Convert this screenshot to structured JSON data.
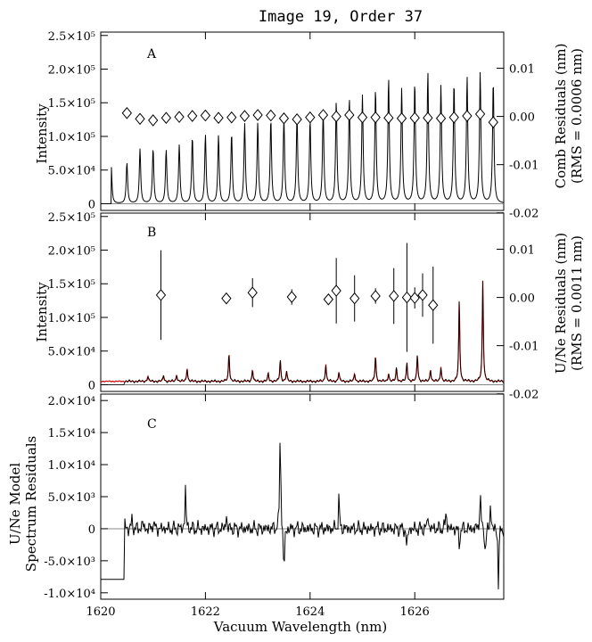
{
  "chart_data": {
    "title": "Image 19, Order 37",
    "xlabel": "Vacuum Wavelength (nm)",
    "xlim": [
      1620,
      1627.7
    ],
    "xticks": [
      1620,
      1622,
      1624,
      1626
    ],
    "xtick_labels": [
      "1620",
      "1622",
      "1624",
      "1626"
    ],
    "panels": [
      {
        "id": "A",
        "type": "line",
        "label": "A",
        "ylabel": "Intensity",
        "ylim": [
          -10000,
          255000
        ],
        "yticks": [
          0,
          50000,
          100000,
          150000,
          200000,
          250000
        ],
        "ytick_labels": [
          "0",
          "5.0×10⁴",
          "1.0×10⁵",
          "1.5×10⁵",
          "2.0×10⁵",
          "2.5×10⁵"
        ],
        "y2label": "Comb Residuals (nm)",
        "y2label2": "(RMS = 0.0006 nm)",
        "y2lim": [
          -0.0195,
          0.0175
        ],
        "y2ticks": [
          -0.02,
          -0.01,
          0.0,
          0.01
        ],
        "y2tick_labels": [
          "-0.02",
          "-0.01",
          "0.00",
          "0.01"
        ],
        "series": [
          {
            "kind": "comb_spectrum",
            "color": "#000000",
            "x": [
              1620.2,
              1620.5,
              1620.75,
              1621.0,
              1621.25,
              1621.5,
              1621.75,
              1622.0,
              1622.25,
              1622.5,
              1622.75,
              1623.0,
              1623.25,
              1623.5,
              1623.75,
              1624.0,
              1624.25,
              1624.5,
              1624.75,
              1625.0,
              1625.25,
              1625.5,
              1625.75,
              1626.0,
              1626.25,
              1626.5,
              1626.75,
              1627.0,
              1627.25,
              1627.5
            ],
            "y": [
              58000,
              61000,
              81000,
              82000,
              80000,
              87000,
              99000,
              102000,
              101000,
              104000,
              119000,
              120000,
              125000,
              128000,
              130000,
              124000,
              138000,
              152000,
              157000,
              160000,
              170000,
              186000,
              170000,
              180000,
              195000,
              175000,
              180000,
              188000,
              195000,
              183000
            ]
          },
          {
            "kind": "diamonds",
            "x": [
              1620.5,
              1620.75,
              1621.0,
              1621.25,
              1621.5,
              1621.75,
              1622.0,
              1622.25,
              1622.5,
              1622.75,
              1623.0,
              1623.25,
              1623.5,
              1623.75,
              1624.0,
              1624.25,
              1624.5,
              1624.75,
              1625.0,
              1625.25,
              1625.5,
              1625.75,
              1626.0,
              1626.25,
              1626.5,
              1626.75,
              1627.0,
              1627.25,
              1627.5
            ],
            "y": [
              0.0007,
              -0.0005,
              -0.0008,
              -0.0003,
              -0.0001,
              0.0001,
              0.0002,
              -0.0003,
              -0.0002,
              0.0001,
              0.0003,
              0.0002,
              -0.0004,
              -0.0006,
              -0.0002,
              0.0003,
              0.0,
              0.0003,
              -0.0002,
              -0.0002,
              -0.0003,
              -0.0004,
              -0.0003,
              -0.0003,
              -0.0004,
              -0.0002,
              0.0001,
              0.0005,
              -0.0012
            ]
          }
        ]
      },
      {
        "id": "B",
        "type": "line",
        "label": "B",
        "ylabel": "Intensity",
        "ylim": [
          -10000,
          255000
        ],
        "yticks": [
          0,
          50000,
          100000,
          150000,
          200000,
          250000
        ],
        "ytick_labels": [
          "0",
          "5.0×10⁴",
          "1.0×10⁵",
          "1.5×10⁵",
          "2.0×10⁵",
          "2.5×10⁵"
        ],
        "y2label": "U/Ne Residuals (nm)",
        "y2label2": "(RMS = 0.0011 nm)",
        "y2lim": [
          -0.0195,
          0.0175
        ],
        "y2ticks": [
          -0.02,
          -0.01,
          0.0,
          0.01
        ],
        "y2tick_labels": [
          "-0.02",
          "-0.01",
          "0.00",
          "0.01"
        ],
        "series": [
          {
            "kind": "uneline",
            "color": "#000000",
            "model_color": "#cc0000",
            "x": [
              1620.9,
              1621.2,
              1621.45,
              1621.65,
              1622.45,
              1622.9,
              1623.2,
              1623.43,
              1623.55,
              1624.3,
              1624.55,
              1624.85,
              1625.25,
              1625.5,
              1625.65,
              1625.85,
              1626.05,
              1626.3,
              1626.5,
              1626.85,
              1627.3
            ],
            "y": [
              8000,
              9000,
              10000,
              20000,
              42000,
              18000,
              12000,
              32000,
              15000,
              26000,
              14000,
              12000,
              38000,
              12000,
              20000,
              28000,
              40000,
              18000,
              22000,
              120000,
              150000
            ]
          },
          {
            "kind": "diamonds_err",
            "x": [
              1621.15,
              1622.4,
              1622.9,
              1623.65,
              1624.35,
              1624.5,
              1624.85,
              1625.25,
              1625.6,
              1625.85,
              1626.0,
              1626.15,
              1626.35
            ],
            "y": [
              0.0005,
              -0.0002,
              0.001,
              0.0001,
              -0.0004,
              0.0014,
              -0.0002,
              0.0003,
              0.0003,
              0.0,
              -0.0001,
              0.0005,
              -0.0016
            ],
            "err": [
              0.0093,
              0.001,
              0.003,
              0.0016,
              0.001,
              0.0068,
              0.0048,
              0.0016,
              0.0058,
              0.0113,
              0.0022,
              0.0045,
              0.008
            ]
          }
        ]
      },
      {
        "id": "C",
        "type": "line",
        "label": "C",
        "ylabel": "U/Ne Model",
        "ylabel2": "Spectrum Residuals",
        "ylim": [
          -11000,
          21000
        ],
        "yticks": [
          -10000,
          -5000,
          0,
          5000,
          10000,
          15000,
          20000
        ],
        "ytick_labels": [
          "-1.0×10⁴",
          "-5.0×10³",
          "0",
          "5.0×10³",
          "1.0×10⁴",
          "1.5×10⁴",
          "2.0×10⁴"
        ],
        "series": [
          {
            "kind": "residual",
            "color": "#000000",
            "x": [
              1620.45,
              1620.6,
              1620.8,
              1621.0,
              1621.62,
              1622.4,
              1623.43,
              1623.5,
              1624.55,
              1625.85,
              1626.25,
              1626.6,
              1626.85,
              1627.25,
              1627.35,
              1627.45,
              1627.6
            ],
            "y": [
              1500,
              1500,
              1200,
              1500,
              6500,
              2300,
              18800,
              -9500,
              5000,
              -4000,
              2500,
              3500,
              -3000,
              6800,
              -5000,
              4500,
              -9000
            ]
          }
        ]
      }
    ]
  }
}
